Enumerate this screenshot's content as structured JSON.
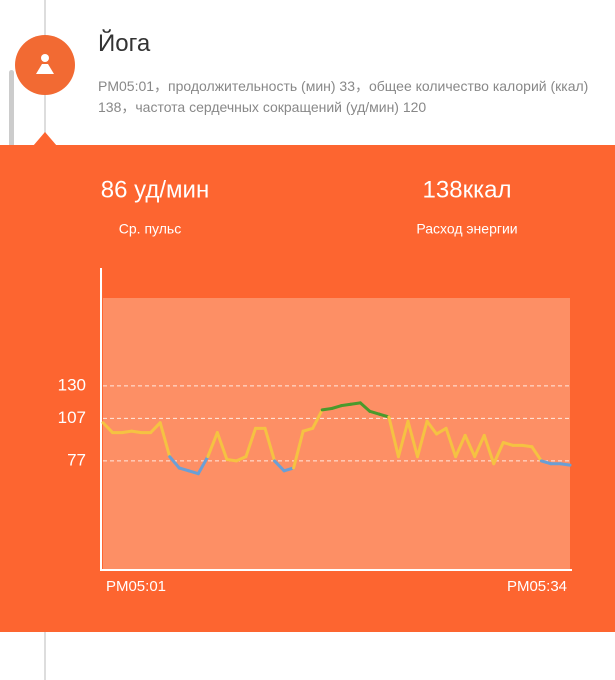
{
  "header": {
    "title": "Йога",
    "description": "PM05:01，продолжительность (мин) 33，общее количество калорий (ккал) 138，частота сердечных сокращений (уд/мин) 120"
  },
  "stats": [
    {
      "value": "86 уд/мин",
      "label": "Ср. пульс"
    },
    {
      "value": "138ккал",
      "label": "Расход энергии"
    }
  ],
  "chart_data": {
    "type": "line",
    "categories": [
      "PM05:01",
      null,
      null,
      null,
      null,
      null,
      null,
      null,
      null,
      null,
      null,
      null,
      null,
      null,
      null,
      null,
      null,
      null,
      null,
      null,
      null,
      null,
      null,
      null,
      null,
      null,
      null,
      null,
      null,
      null,
      null,
      null,
      null,
      null,
      null,
      null,
      null,
      null,
      null,
      null,
      null,
      null,
      null,
      null,
      null,
      null,
      null,
      null,
      null,
      "PM05:34"
    ],
    "values": [
      104,
      97,
      97,
      98,
      97,
      97,
      104,
      80,
      72,
      70,
      68,
      80,
      97,
      78,
      77,
      80,
      100,
      100,
      77,
      70,
      72,
      98,
      100,
      113,
      114,
      116,
      117,
      118,
      112,
      110,
      108,
      80,
      105,
      80,
      105,
      96,
      100,
      80,
      95,
      80,
      95,
      75,
      90,
      88,
      88,
      87,
      77,
      75,
      75,
      74
    ],
    "ylim": [
      0,
      192
    ],
    "yticks": [
      77,
      107,
      130
    ],
    "colors": {
      "low": "#6a9fd6",
      "normal": "#f5c242",
      "high": "#4a9a2c"
    }
  }
}
